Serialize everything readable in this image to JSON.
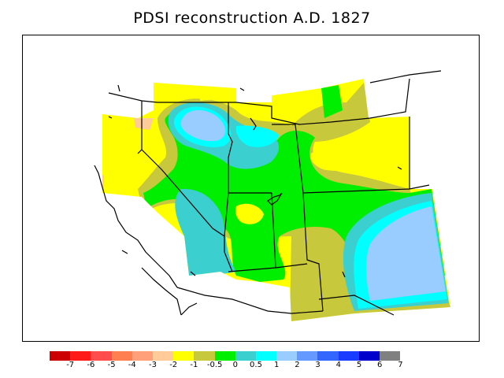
{
  "title": "PDSI reconstruction A.D. 1827",
  "legend": {
    "labels": [
      "-7",
      "-6",
      "-5",
      "-4",
      "-3",
      "-2",
      "-1",
      "-0.5",
      "0",
      "0.5",
      "1",
      "2",
      "3",
      "4",
      "5",
      "6",
      "7"
    ],
    "colors": [
      "#cc0000",
      "#ff1a1a",
      "#ff4d4d",
      "#ff7f50",
      "#ffa07a",
      "#ffcc99",
      "#ffff00",
      "#c8c83c",
      "#00ee00",
      "#3ccfcf",
      "#00ffff",
      "#99ccff",
      "#6699ff",
      "#3366ff",
      "#1a3cff",
      "#0000cc",
      "#808080"
    ]
  },
  "map": {
    "region": "Western United States",
    "variable": "PDSI",
    "year": "1827",
    "colors": {
      "yellow": "#ffff00",
      "olive": "#c8c83c",
      "green": "#00ee00",
      "teal": "#3ccfcf",
      "cyan": "#00ffff",
      "lightblue": "#99ccff",
      "peach": "#ffcc99",
      "border": "#000000"
    }
  }
}
